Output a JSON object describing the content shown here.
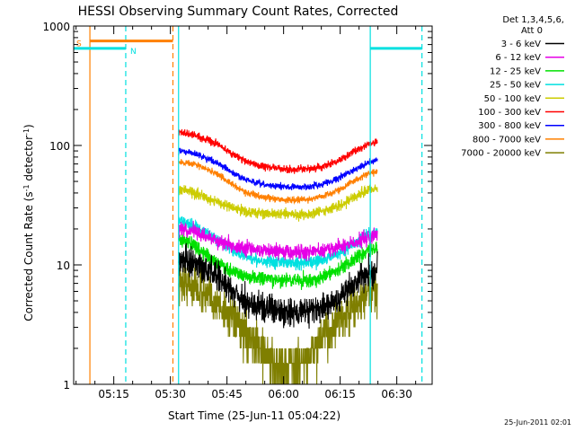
{
  "chart_data": {
    "type": "line",
    "title": "HESSI Observing Summary Count Rates, Corrected",
    "xlabel": "Start Time (25-Jun-11 05:04:22)",
    "ylabel_parts": [
      "Corrected Count Rate (s",
      "-1",
      " detector",
      "-1",
      ")"
    ],
    "x_unit": "minutes after 05:04:22",
    "xlim": [
      0,
      95
    ],
    "ylim": [
      1,
      1000
    ],
    "yscale": "log",
    "x_ticks": [
      {
        "x": 10.63,
        "label": "05:15"
      },
      {
        "x": 25.63,
        "label": "05:30"
      },
      {
        "x": 40.63,
        "label": "05:45"
      },
      {
        "x": 55.63,
        "label": "06:00"
      },
      {
        "x": 70.63,
        "label": "06:15"
      },
      {
        "x": 85.63,
        "label": "06:30"
      }
    ],
    "y_ticks": [
      {
        "y": 1,
        "label": "1"
      },
      {
        "y": 10,
        "label": "10"
      },
      {
        "y": 100,
        "label": "100"
      },
      {
        "y": 1000,
        "label": "1000"
      }
    ],
    "legend": {
      "placement": "right",
      "header": [
        "Det 1,3,4,5,6,",
        "Att 0"
      ]
    },
    "series": [
      {
        "name": "3 - 6 keV",
        "color": "#000000",
        "noise": 0.14,
        "points": [
          [
            27.8,
            11
          ],
          [
            32,
            10.5
          ],
          [
            38,
            8
          ],
          [
            42,
            6
          ],
          [
            46,
            4.8
          ],
          [
            50,
            4.4
          ],
          [
            56,
            4.1
          ],
          [
            62,
            4.0
          ],
          [
            66,
            4.3
          ],
          [
            70,
            5.2
          ],
          [
            74,
            6.8
          ],
          [
            78,
            8.6
          ],
          [
            80.5,
            9.5
          ]
        ]
      },
      {
        "name": "6 - 12 keV",
        "color": "#e600e6",
        "noise": 0.07,
        "points": [
          [
            27.8,
            20
          ],
          [
            32,
            19
          ],
          [
            38,
            16
          ],
          [
            42,
            14.5
          ],
          [
            46,
            13.8
          ],
          [
            50,
            13.3
          ],
          [
            56,
            13
          ],
          [
            62,
            12.8
          ],
          [
            66,
            13.2
          ],
          [
            70,
            14
          ],
          [
            74,
            15.2
          ],
          [
            78,
            17
          ],
          [
            80.5,
            17.5
          ]
        ]
      },
      {
        "name": "12 - 25 keV",
        "color": "#00e000",
        "noise": 0.07,
        "points": [
          [
            27.8,
            17
          ],
          [
            32,
            14.5
          ],
          [
            38,
            10.5
          ],
          [
            42,
            8.8
          ],
          [
            46,
            8
          ],
          [
            50,
            7.6
          ],
          [
            56,
            7.4
          ],
          [
            62,
            7.4
          ],
          [
            66,
            7.9
          ],
          [
            70,
            9
          ],
          [
            74,
            11
          ],
          [
            78,
            13.2
          ],
          [
            80.5,
            14
          ]
        ]
      },
      {
        "name": "25 - 50 keV",
        "color": "#00e0e0",
        "noise": 0.06,
        "points": [
          [
            27.8,
            24
          ],
          [
            32,
            21
          ],
          [
            38,
            16.5
          ],
          [
            42,
            13.2
          ],
          [
            46,
            11.6
          ],
          [
            50,
            10.9
          ],
          [
            56,
            10.5
          ],
          [
            62,
            10.5
          ],
          [
            66,
            11
          ],
          [
            70,
            12.3
          ],
          [
            74,
            14.8
          ],
          [
            78,
            17.8
          ],
          [
            80.5,
            19
          ]
        ]
      },
      {
        "name": "50 - 100 keV",
        "color": "#cccc00",
        "noise": 0.05,
        "points": [
          [
            27.8,
            43
          ],
          [
            32,
            40
          ],
          [
            38,
            34
          ],
          [
            42,
            30
          ],
          [
            46,
            28
          ],
          [
            50,
            27
          ],
          [
            56,
            26.4
          ],
          [
            62,
            26.5
          ],
          [
            66,
            28
          ],
          [
            70,
            31
          ],
          [
            74,
            36.5
          ],
          [
            78,
            42
          ],
          [
            80.5,
            44
          ]
        ]
      },
      {
        "name": "100 - 300 keV",
        "color": "#ff0000",
        "noise": 0.035,
        "points": [
          [
            27.8,
            128
          ],
          [
            32,
            123
          ],
          [
            38,
            103
          ],
          [
            42,
            85
          ],
          [
            46,
            73
          ],
          [
            50,
            67
          ],
          [
            56,
            63
          ],
          [
            62,
            63
          ],
          [
            66,
            66
          ],
          [
            70,
            74
          ],
          [
            74,
            88
          ],
          [
            78,
            103
          ],
          [
            80.5,
            107
          ]
        ]
      },
      {
        "name": "300 - 800 keV",
        "color": "#0000ff",
        "noise": 0.03,
        "points": [
          [
            27.8,
            90
          ],
          [
            32,
            86
          ],
          [
            38,
            72
          ],
          [
            42,
            59
          ],
          [
            46,
            51
          ],
          [
            50,
            47
          ],
          [
            56,
            45
          ],
          [
            62,
            45
          ],
          [
            66,
            47.5
          ],
          [
            70,
            53
          ],
          [
            74,
            62
          ],
          [
            78,
            72
          ],
          [
            80.5,
            75
          ]
        ]
      },
      {
        "name": "800 - 7000 keV",
        "color": "#ff8000",
        "noise": 0.03,
        "points": [
          [
            27.8,
            73
          ],
          [
            32,
            70
          ],
          [
            38,
            58
          ],
          [
            42,
            47
          ],
          [
            46,
            40
          ],
          [
            50,
            37
          ],
          [
            56,
            35
          ],
          [
            62,
            35.3
          ],
          [
            66,
            37.5
          ],
          [
            70,
            42
          ],
          [
            74,
            50
          ],
          [
            78,
            58
          ],
          [
            80.5,
            60
          ]
        ]
      },
      {
        "name": "7000 - 20000 keV",
        "color": "#7f7f00",
        "noise": 0.2,
        "points": [
          [
            27.8,
            7.2
          ],
          [
            32,
            6.5
          ],
          [
            38,
            4.8
          ],
          [
            42,
            3.6
          ],
          [
            44,
            3
          ],
          [
            46,
            2.6
          ],
          [
            48,
            2.2
          ],
          [
            50,
            2
          ],
          [
            52,
            1.5
          ],
          [
            56,
            1.4
          ],
          [
            60,
            1.5
          ],
          [
            62,
            1.6
          ],
          [
            64,
            2
          ],
          [
            66,
            2.5
          ],
          [
            70,
            3.2
          ],
          [
            74,
            4.3
          ],
          [
            78,
            5.6
          ],
          [
            80.5,
            6
          ]
        ]
      }
    ],
    "state_bars": [
      {
        "label": "S",
        "color": "#ff8000",
        "x_start": 4.3,
        "x_end": 26.3,
        "y": 750
      },
      {
        "label": "N",
        "color": "#00e0e0",
        "x_start": 0,
        "x_end": 13.8,
        "y": 650
      },
      {
        "label": "",
        "color": "#00e0e0",
        "x_start": 78.6,
        "x_end": 92.3,
        "y": 650
      }
    ],
    "vertical_lines": [
      {
        "x": 4.3,
        "color": "#ff8000",
        "style": "solid"
      },
      {
        "x": 13.8,
        "color": "#00e0e0",
        "style": "dashed"
      },
      {
        "x": 26.3,
        "color": "#ff8000",
        "style": "dashed"
      },
      {
        "x": 27.8,
        "color": "#00e0e0",
        "style": "solid"
      },
      {
        "x": 78.6,
        "color": "#00e0e0",
        "style": "solid"
      },
      {
        "x": 92.3,
        "color": "#00e0e0",
        "style": "dashed"
      }
    ]
  },
  "footer": {
    "date": "25-Jun-2011 02:01"
  }
}
